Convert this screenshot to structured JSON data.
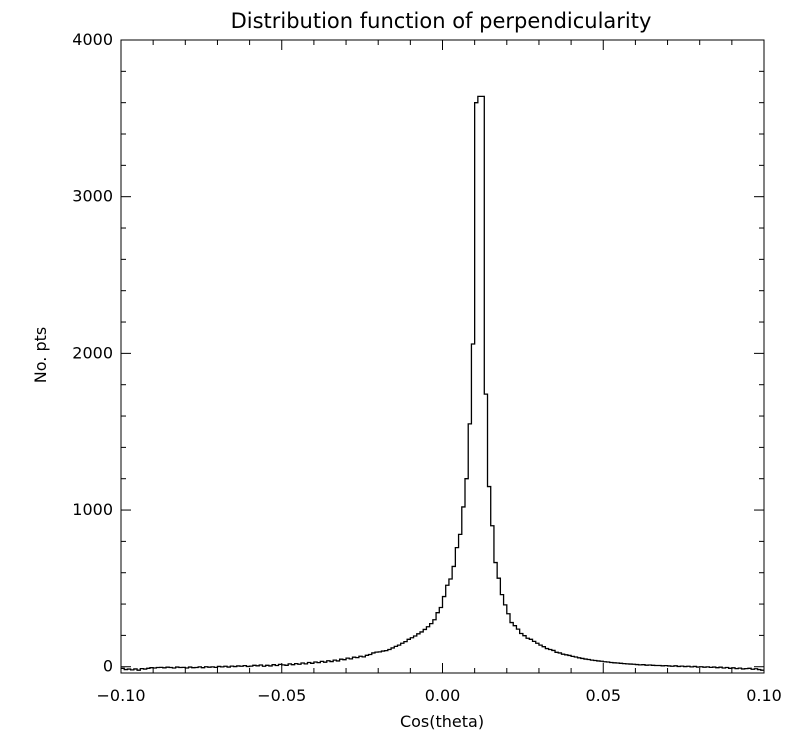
{
  "chart_data": {
    "type": "histogram",
    "title": "Distribution function of perpendicularity",
    "xlabel": "Cos(theta)",
    "ylabel": "No. pts",
    "xlim": [
      -0.1,
      0.1
    ],
    "ylim": [
      -40,
      4000
    ],
    "xticks": [
      -0.1,
      -0.05,
      0.0,
      0.05,
      0.1
    ],
    "xtick_labels": [
      "−0.10",
      "−0.05",
      "0.00",
      "0.05",
      "0.10"
    ],
    "yticks": [
      0,
      1000,
      2000,
      3000,
      4000
    ],
    "ytick_labels": [
      "0",
      "1000",
      "2000",
      "3000",
      "4000"
    ],
    "grid": false,
    "legend": "none",
    "line_color": "#000000",
    "series": [
      {
        "bin_width": 0.001,
        "x_start": -0.1,
        "values": [
          -10,
          -18,
          -15,
          -20,
          -14,
          -22,
          -12,
          -15,
          -10,
          -6,
          -8,
          -5,
          -4,
          -7,
          -3,
          -5,
          -8,
          -2,
          -5,
          -4,
          -8,
          -2,
          -6,
          -5,
          -1,
          -6,
          0,
          -3,
          -1,
          -4,
          2,
          -1,
          3,
          -2,
          4,
          1,
          5,
          3,
          7,
          2,
          4,
          9,
          6,
          11,
          3,
          9,
          5,
          13,
          8,
          15,
          12,
          9,
          18,
          13,
          20,
          16,
          24,
          18,
          27,
          22,
          30,
          26,
          34,
          29,
          38,
          33,
          42,
          37,
          48,
          45,
          55,
          50,
          61,
          58,
          67,
          63,
          73,
          78,
          88,
          93,
          95,
          100,
          103,
          110,
          120,
          130,
          138,
          150,
          160,
          175,
          185,
          196,
          210,
          222,
          238,
          255,
          275,
          300,
          345,
          378,
          448,
          520,
          560,
          640,
          760,
          845,
          1020,
          1200,
          1550,
          2060,
          3600,
          3640,
          3640,
          1740,
          1150,
          900,
          665,
          565,
          460,
          395,
          338,
          282,
          262,
          240,
          212,
          198,
          182,
          175,
          162,
          150,
          138,
          128,
          116,
          110,
          104,
          92,
          88,
          80,
          76,
          72,
          66,
          62,
          57,
          53,
          49,
          46,
          42,
          40,
          37,
          35,
          32,
          30,
          27,
          25,
          24,
          22,
          20,
          18,
          17,
          16,
          14,
          12,
          13,
          10,
          11,
          9,
          8,
          8,
          6,
          7,
          5,
          3,
          6,
          2,
          4,
          1,
          3,
          -1,
          2,
          -2,
          0,
          -3,
          -1,
          -4,
          -2,
          -6,
          -3,
          -8,
          -5,
          -10,
          -7,
          -12,
          -9,
          -14,
          -12,
          -10,
          -16,
          -13,
          -18,
          -22
        ]
      }
    ]
  }
}
